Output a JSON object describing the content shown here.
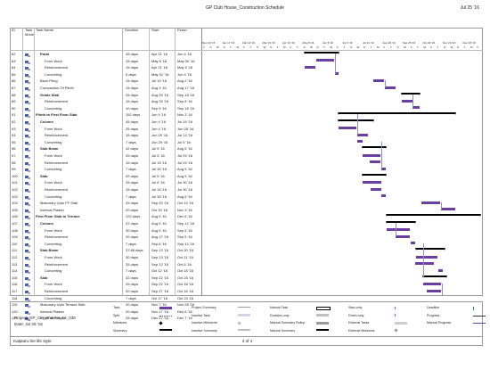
{
  "page": {
    "title": "GP Club House_Construction Schedule",
    "date": "Jul 25 '16",
    "page_label": "3 of 4",
    "footer_left": "Kalptaru the life style"
  },
  "columns": {
    "id": "ID",
    "mode": "Task Mode",
    "name": "Task Name",
    "duration": "Duration",
    "start": "Start",
    "finish": "Finish"
  },
  "timeline": {
    "weeks": [
      "Dec 20,'15",
      "Jan 17,'16",
      "Feb 14,'16",
      "Mar 13,'16",
      "Apr 10,'16",
      "May 8,'16",
      "Jun 5,'16",
      "Jul 3,'16",
      "Jul 31,'16",
      "Aug 28,'16",
      "Sep 25,'16",
      "Oct 23,'16",
      "Nov 20,'16",
      "Dec 18,'16"
    ],
    "days": [
      "T",
      "S",
      "W",
      "S",
      "T",
      "M",
      "F",
      "T",
      "S",
      "W",
      "S",
      "T",
      "M",
      "F",
      "T",
      "S",
      "W",
      "S",
      "T",
      "M",
      "F",
      "T",
      "S",
      "W",
      "S",
      "T",
      "M",
      "F",
      "T",
      "S",
      "W",
      "S",
      "T",
      "M",
      "F",
      "T",
      "S",
      "W",
      "S",
      "T",
      "M",
      "F"
    ]
  },
  "tasks": [
    {
      "id": "82",
      "indent": 1,
      "name": "Parat",
      "duration": "45 days",
      "start": "Apr 21 '16",
      "finish": "Jun 4 '16",
      "summary": true,
      "s": 121,
      "e": 165
    },
    {
      "id": "83",
      "indent": 2,
      "name": "Form Work",
      "duration": "15 days",
      "start": "May 6 '16",
      "finish": "May 30 '16",
      "summary": false,
      "s": 136,
      "e": 160
    },
    {
      "id": "84",
      "indent": 2,
      "name": "Reinforcement",
      "duration": "15 days",
      "start": "Apr 21 '16",
      "finish": "May 5 '16",
      "summary": false,
      "s": 121,
      "e": 135
    },
    {
      "id": "85",
      "indent": 2,
      "name": "Concreting",
      "duration": "5 days",
      "start": "May 31 '16",
      "finish": "Jun 4 '16",
      "summary": false,
      "s": 161,
      "e": 165
    },
    {
      "id": "86",
      "indent": 1,
      "name": "Back Filing",
      "duration": "15 days",
      "start": "Jul 19 '16",
      "finish": "Aug 2 '16",
      "summary": false,
      "s": 210,
      "e": 224
    },
    {
      "id": "87",
      "indent": 1,
      "name": "Compaction Of Plinth",
      "duration": "15 days",
      "start": "Aug 3 '16",
      "finish": "Aug 17 '16",
      "summary": false,
      "s": 225,
      "e": 239
    },
    {
      "id": "88",
      "indent": 1,
      "name": "Grade Slab",
      "duration": "25 days",
      "start": "Aug 25 '16",
      "finish": "Sep 18 '16",
      "summary": true,
      "s": 247,
      "e": 271
    },
    {
      "id": "89",
      "indent": 2,
      "name": "Reinforcement",
      "duration": "15 days",
      "start": "Aug 25 '16",
      "finish": "Sep 8 '16",
      "summary": false,
      "s": 247,
      "e": 261
    },
    {
      "id": "90",
      "indent": 2,
      "name": "Concreting",
      "duration": "10 days",
      "start": "Sep 9 '16",
      "finish": "Sep 18 '16",
      "summary": false,
      "s": 262,
      "e": 271
    },
    {
      "id": "91",
      "indent": 0,
      "name": "Plinth to First Floor Slab",
      "duration": "152 days",
      "start": "Jun 4 '16",
      "finish": "Nov 3 '16",
      "summary": true,
      "s": 165,
      "e": 317
    },
    {
      "id": "92",
      "indent": 1,
      "name": "Column",
      "duration": "45 days",
      "start": "Jun 4 '16",
      "finish": "Jul 19 '16",
      "summary": true,
      "s": 165,
      "e": 210
    },
    {
      "id": "93",
      "indent": 2,
      "name": "Form Work",
      "duration": "25 days",
      "start": "Jun 4 '16",
      "finish": "Jun 28 '16",
      "summary": false,
      "s": 165,
      "e": 189
    },
    {
      "id": "94",
      "indent": 2,
      "name": "Reinforcement",
      "duration": "15 days",
      "start": "Jun 29 '16",
      "finish": "Jul 13 '16",
      "summary": false,
      "s": 190,
      "e": 204
    },
    {
      "id": "95",
      "indent": 2,
      "name": "Concreting",
      "duration": "7 days",
      "start": "Jun 29 '16",
      "finish": "Jul 5 '16",
      "summary": false,
      "s": 190,
      "e": 196
    },
    {
      "id": "96",
      "indent": 1,
      "name": "Slab Beam",
      "duration": "32 days",
      "start": "Jul 5 '16",
      "finish": "Aug 5 '16",
      "summary": true,
      "s": 196,
      "e": 227
    },
    {
      "id": "97",
      "indent": 2,
      "name": "Form Work",
      "duration": "25 days",
      "start": "Jul 5 '16",
      "finish": "Jul 29 '16",
      "summary": false,
      "s": 196,
      "e": 220
    },
    {
      "id": "98",
      "indent": 2,
      "name": "Reinforcement",
      "duration": "15 days",
      "start": "Jul 15 '16",
      "finish": "Jul 29 '16",
      "summary": false,
      "s": 206,
      "e": 220
    },
    {
      "id": "99",
      "indent": 2,
      "name": "Concreting",
      "duration": "7 days",
      "start": "Jul 30 '16",
      "finish": "Aug 5 '16",
      "summary": false,
      "s": 221,
      "e": 227
    },
    {
      "id": "100",
      "indent": 1,
      "name": "Slab",
      "duration": "32 days",
      "start": "Jul 5 '16",
      "finish": "Aug 5 '16",
      "summary": true,
      "s": 196,
      "e": 227
    },
    {
      "id": "101",
      "indent": 2,
      "name": "Form Work",
      "duration": "25 days",
      "start": "Jul 6 '16",
      "finish": "Jul 30 '16",
      "summary": false,
      "s": 197,
      "e": 221
    },
    {
      "id": "102",
      "indent": 2,
      "name": "Reinforcement",
      "duration": "15 days",
      "start": "Jul 16 '16",
      "finish": "Jul 30 '16",
      "summary": false,
      "s": 207,
      "e": 221
    },
    {
      "id": "103",
      "indent": 2,
      "name": "Concreting",
      "duration": "7 days",
      "start": "Jul 30 '16",
      "finish": "Aug 5 '16",
      "summary": false,
      "s": 221,
      "e": 227
    },
    {
      "id": "104",
      "indent": 1,
      "name": "Masonary Upto FF Slab",
      "duration": "25 days",
      "start": "Sep 20 '16",
      "finish": "Oct 14 '16",
      "summary": false,
      "s": 273,
      "e": 297
    },
    {
      "id": "105",
      "indent": 1,
      "name": "Internal Plaster",
      "duration": "20 days",
      "start": "Oct 15 '16",
      "finish": "Nov 3 '16",
      "summary": false,
      "s": 298,
      "e": 317
    },
    {
      "id": "106",
      "indent": 0,
      "name": "First Floor Slab to Terrace",
      "duration": "122 days",
      "start": "Aug 6 '16",
      "finish": "Dec 6 '16",
      "summary": true,
      "s": 228,
      "e": 350
    },
    {
      "id": "107",
      "indent": 1,
      "name": "Column",
      "duration": "37 days",
      "start": "Aug 6 '16",
      "finish": "Sep 12 '16",
      "summary": true,
      "s": 228,
      "e": 265
    },
    {
      "id": "108",
      "indent": 2,
      "name": "Form Work",
      "duration": "30 days",
      "start": "Aug 6 '16",
      "finish": "Sep 5 '16",
      "summary": false,
      "s": 228,
      "e": 258
    },
    {
      "id": "109",
      "indent": 2,
      "name": "Reinforcement",
      "duration": "20 days",
      "start": "Aug 17 '16",
      "finish": "Sep 5 '16",
      "summary": false,
      "s": 239,
      "e": 258
    },
    {
      "id": "110",
      "indent": 2,
      "name": "Concreting",
      "duration": "7 days",
      "start": "Sep 6 '16",
      "finish": "Sep 12 '16",
      "summary": false,
      "s": 259,
      "e": 265
    },
    {
      "id": "111",
      "indent": 1,
      "name": "Slab Beam",
      "duration": "37.88 days",
      "start": "Sep 13 '16",
      "finish": "Oct 20 '16",
      "summary": true,
      "s": 266,
      "e": 303
    },
    {
      "id": "112",
      "indent": 2,
      "name": "Form Work",
      "duration": "30 days",
      "start": "Sep 13 '16",
      "finish": "Oct 11 '16",
      "summary": false,
      "s": 266,
      "e": 294
    },
    {
      "id": "113",
      "indent": 2,
      "name": "Reinforcement",
      "duration": "25 days",
      "start": "Sep 12 '16",
      "finish": "Oct 6 '16",
      "summary": false,
      "s": 265,
      "e": 289
    },
    {
      "id": "114",
      "indent": 2,
      "name": "Concreting",
      "duration": "7 days",
      "start": "Oct 12 '16",
      "finish": "Oct 18 '16",
      "summary": false,
      "s": 295,
      "e": 301
    },
    {
      "id": "115",
      "indent": 1,
      "name": "Slab",
      "duration": "32 days",
      "start": "Sep 22 '16",
      "finish": "Oct 23 '16",
      "summary": true,
      "s": 275,
      "e": 306
    },
    {
      "id": "116",
      "indent": 2,
      "name": "Form Work",
      "duration": "25 days",
      "start": "Sep 22 '16",
      "finish": "Oct 16 '16",
      "summary": false,
      "s": 275,
      "e": 299
    },
    {
      "id": "117",
      "indent": 2,
      "name": "Reinforcement",
      "duration": "20 days",
      "start": "Sep 27 '16",
      "finish": "Oct 16 '16",
      "summary": false,
      "s": 280,
      "e": 299
    },
    {
      "id": "118",
      "indent": 2,
      "name": "Concreting",
      "duration": "7 days",
      "start": "Oct 17 '16",
      "finish": "Oct 23 '16",
      "summary": false,
      "s": 300,
      "e": 306
    },
    {
      "id": "119",
      "indent": 1,
      "name": "Masonary Upto Terrace Slab",
      "duration": "20 days",
      "start": "Nov 7 '16",
      "finish": "Nov 26 '16",
      "summary": false,
      "s": 321,
      "e": 340
    },
    {
      "id": "120",
      "indent": 1,
      "name": "Internal Plaster",
      "duration": "20 days",
      "start": "Nov 17 '16",
      "finish": "Dec 6 '16",
      "summary": false,
      "s": 331,
      "e": 350
    },
    {
      "id": "121",
      "indent": 1,
      "name": "External Plaster",
      "duration": "25 days",
      "start": "Dec 27 '16",
      "finish": "Dec 7 '16",
      "summary": false,
      "s": 335,
      "e": 359
    }
  ],
  "legend": {
    "project_line1": "Project: GP_CH_Shrimet_14_030",
    "project_line2": "Date: Jul 25 '16",
    "items": [
      {
        "label": "Task",
        "kind": "bar",
        "color": "#6b3fa0"
      },
      {
        "label": "Split",
        "kind": "dots",
        "color": "#6b3fa0"
      },
      {
        "label": "Milestone",
        "kind": "diamond",
        "color": "#000000"
      },
      {
        "label": "Summary",
        "kind": "summary",
        "color": "#000000"
      },
      {
        "label": "Project Summary",
        "kind": "psummary",
        "color": "#9a9a9a"
      },
      {
        "label": "Inactive Task",
        "kind": "bar",
        "color": "#d9d2e6"
      },
      {
        "label": "Inactive Milestone",
        "kind": "diamond",
        "color": "#bdbdbd"
      },
      {
        "label": "Inactive Summary",
        "kind": "psummary",
        "color": "#bdbdbd"
      },
      {
        "label": "Manual Task",
        "kind": "outline",
        "color": "#000000"
      },
      {
        "label": "Duration-only",
        "kind": "bar",
        "color": "#bfbfbf"
      },
      {
        "label": "Manual Summary Rollup",
        "kind": "bar",
        "color": "#9a9a9a"
      },
      {
        "label": "Manual Summary",
        "kind": "summary",
        "color": "#000000"
      },
      {
        "label": "Start-only",
        "kind": "bracket",
        "color": "#e03fa3"
      },
      {
        "label": "Finish-only",
        "kind": "bracket",
        "color": "#e03fa3"
      },
      {
        "label": "External Tasks",
        "kind": "bar",
        "color": "#cccccc"
      },
      {
        "label": "External Milestone",
        "kind": "diamond",
        "color": "#9a9a9a"
      },
      {
        "label": "Deadline",
        "kind": "arrow",
        "color": "#2ca02c"
      },
      {
        "label": "Progress",
        "kind": "line",
        "color": "#333333"
      },
      {
        "label": "Manual Progress",
        "kind": "line",
        "color": "#6b3fa0"
      }
    ]
  }
}
